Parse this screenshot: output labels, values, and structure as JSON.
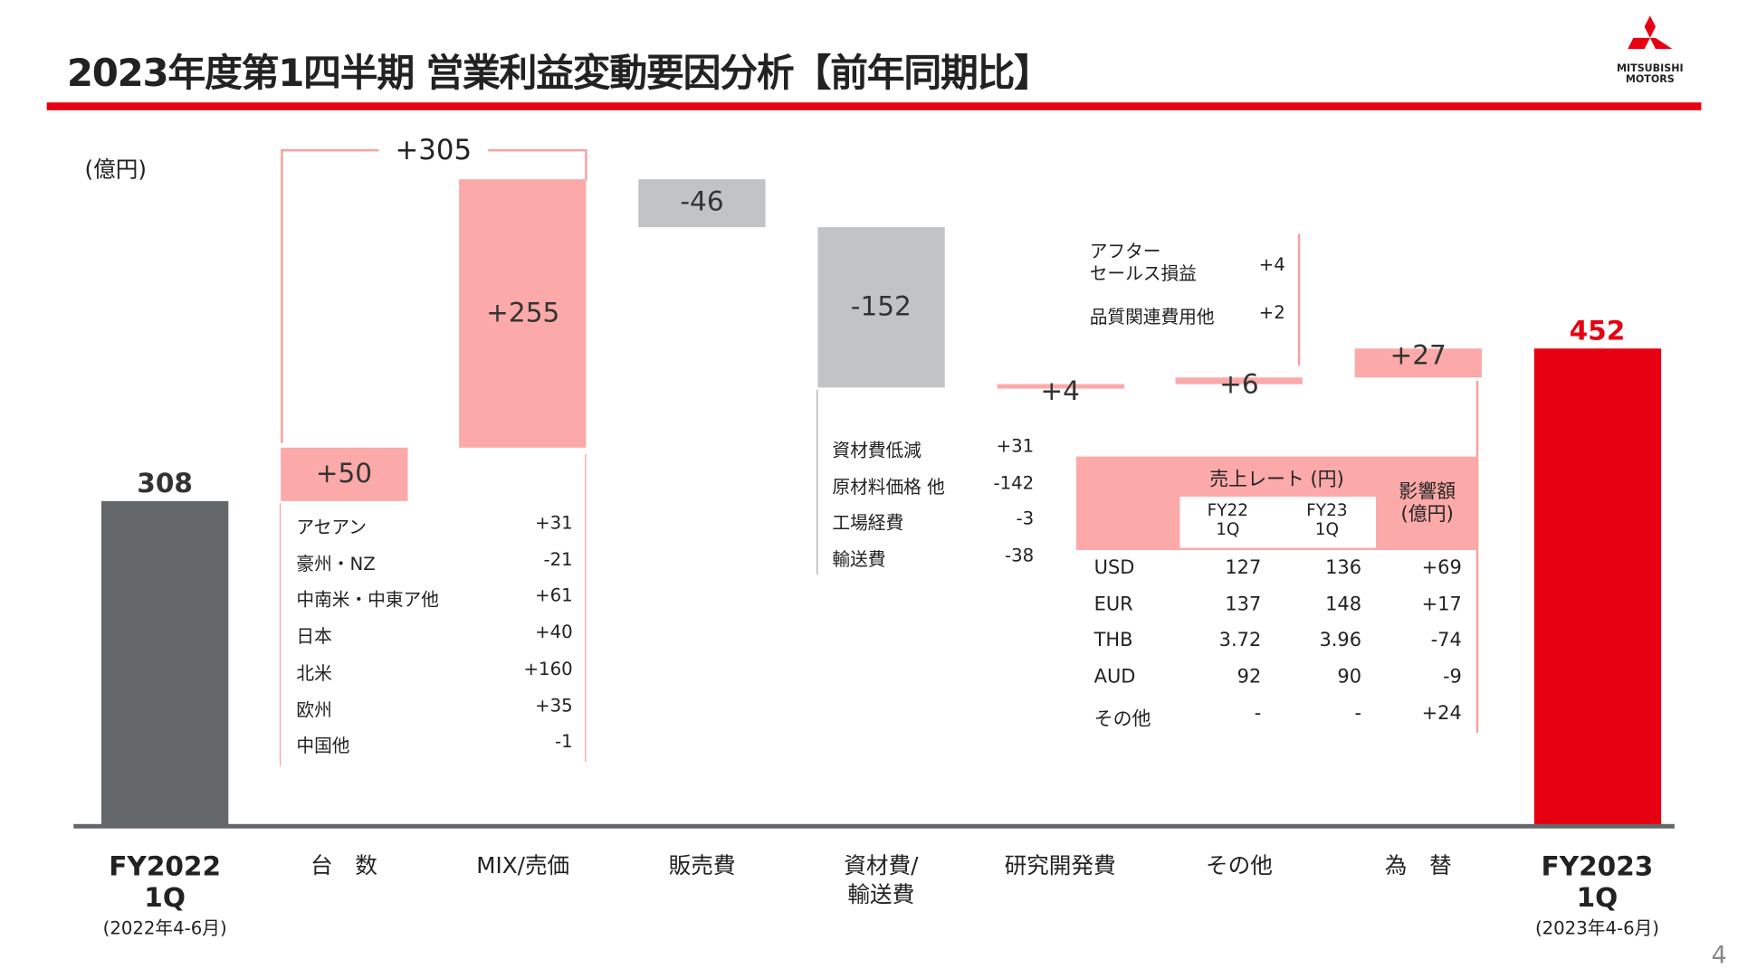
{
  "title": "2023年度第1四半期 営業利益変動要因分析【前年同期比】",
  "logo": {
    "line1": "MITSUBISHI",
    "line2": "MOTORS"
  },
  "unit": "(億円)",
  "page_number": "4",
  "colors": {
    "accent": "#e60012",
    "start_bar": "#63676a",
    "positive": "#fca9a9",
    "negative": "#c1c3c5"
  },
  "chart_data": {
    "type": "waterfall",
    "ylabel": "(億円)",
    "categories": [
      "FY2022 1Q",
      "台 数",
      "MIX/売価",
      "販売費",
      "資材費/輸送費",
      "研究開発費",
      "その他",
      "為 替",
      "FY2023 1Q"
    ],
    "values": [
      308,
      50,
      255,
      -46,
      -152,
      4,
      6,
      27,
      452
    ],
    "labels": [
      "308",
      "+50",
      "+255",
      "-46",
      "-152",
      "+4",
      "+6",
      "+27",
      "452"
    ],
    "bracket": {
      "label": "+305",
      "spans": [
        "台 数",
        "MIX/売価"
      ],
      "value": 305
    },
    "cat_labels": [
      {
        "l1": "FY2022",
        "l2": "1Q",
        "l3": "(2022年4-6月)"
      },
      {
        "l1": "台　数"
      },
      {
        "l1": "MIX/売価"
      },
      {
        "l1": "販売費"
      },
      {
        "l1": "資材費/",
        "l2": "輸送費"
      },
      {
        "l1": "研究開発費"
      },
      {
        "l1": "その他"
      },
      {
        "l1": "為　替"
      },
      {
        "l1": "FY2023",
        "l2": "1Q",
        "l3": "(2023年4-6月)"
      }
    ]
  },
  "volume_breakdown": [
    {
      "name": "アセアン",
      "value": "+31"
    },
    {
      "name": "豪州・NZ",
      "value": "-21"
    },
    {
      "name": "中南米・中東ア他",
      "value": "+61"
    },
    {
      "name": "日本",
      "value": "+40"
    },
    {
      "name": "北米",
      "value": "+160"
    },
    {
      "name": "欧州",
      "value": "+35"
    },
    {
      "name": "中国他",
      "value": "-1"
    }
  ],
  "material_breakdown": [
    {
      "name": "資材費低減",
      "value": "+31"
    },
    {
      "name": "原材料価格 他",
      "value": "-142"
    },
    {
      "name": "工場経費",
      "value": "-3"
    },
    {
      "name": "輸送費",
      "value": "-38"
    }
  ],
  "other_breakdown": [
    {
      "name": "アフター",
      "name2": "セールス損益",
      "value": "+4"
    },
    {
      "name": "品質関連費用他",
      "value": "+2"
    }
  ],
  "fx_table": {
    "header_rate": "売上レート (円)",
    "col1": "FY22",
    "col1b": "1Q",
    "col2": "FY23",
    "col2b": "1Q",
    "impact": "影響額",
    "impact2": "(億円)",
    "rows": [
      {
        "cur": "USD",
        "fy22": "127",
        "fy23": "136",
        "impact": "+69"
      },
      {
        "cur": "EUR",
        "fy22": "137",
        "fy23": "148",
        "impact": "+17"
      },
      {
        "cur": "THB",
        "fy22": "3.72",
        "fy23": "3.96",
        "impact": "-74"
      },
      {
        "cur": "AUD",
        "fy22": "92",
        "fy23": "90",
        "impact": "-9"
      },
      {
        "cur": "その他",
        "fy22": "-",
        "fy23": "-",
        "impact": "+24"
      }
    ]
  }
}
